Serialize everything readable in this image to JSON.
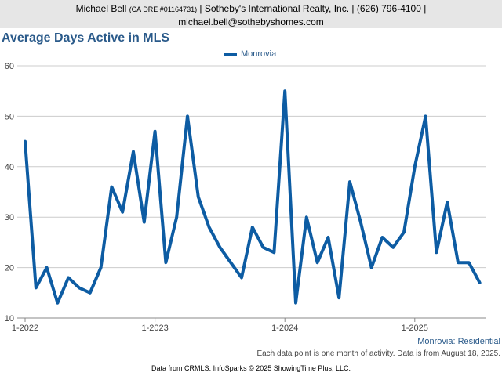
{
  "header": {
    "agent_name": "Michael Bell",
    "license": "(CA DRE #01164731)",
    "details": "| Sotheby's International Realty, Inc. | (626) 796-4100 |",
    "email": "michael.bell@sothebyshomes.com"
  },
  "footer": {
    "series_label": "Monrovia: Residential",
    "note": "Each data point is one month of activity. Data is from August 18, 2025.",
    "source": "Data from CRMLS. InfoSparks © 2025 ShowingTime Plus, LLC."
  },
  "colors": {
    "line": "#0d5ca3",
    "title": "#2a5a8a",
    "grid": "#cccccc"
  },
  "chart_data": {
    "type": "line",
    "title": "Average Days Active in MLS",
    "ylim": [
      10,
      60
    ],
    "yticks": [
      10,
      20,
      30,
      40,
      50,
      60
    ],
    "xticks": [
      {
        "label": "1-2022",
        "index": 0
      },
      {
        "label": "1-2023",
        "index": 12
      },
      {
        "label": "1-2024",
        "index": 24
      },
      {
        "label": "1-2025",
        "index": 36
      }
    ],
    "grid": true,
    "legend": "top-center",
    "series": [
      {
        "name": "Monrovia",
        "values": [
          45,
          16,
          20,
          13,
          18,
          16,
          15,
          20,
          36,
          31,
          43,
          29,
          47,
          21,
          30,
          50,
          34,
          28,
          24,
          21,
          18,
          28,
          24,
          23,
          55,
          13,
          30,
          21,
          26,
          14,
          37,
          29,
          20,
          26,
          24,
          27,
          40,
          50,
          23,
          33,
          21,
          21,
          17
        ]
      }
    ]
  }
}
